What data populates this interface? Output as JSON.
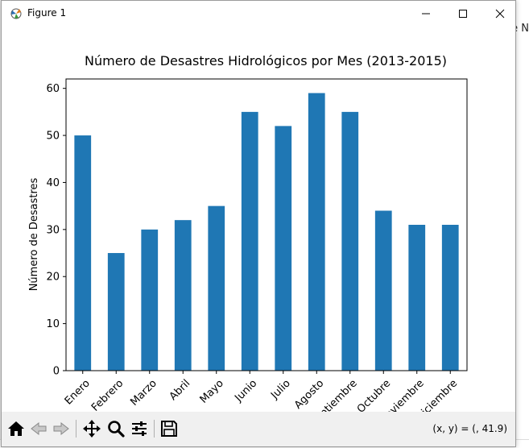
{
  "background": {
    "right_text": "e N"
  },
  "window": {
    "title": "Figure 1",
    "colors": {
      "bar": "#1f77b4",
      "toolbar_bg": "#f0f0f0"
    }
  },
  "toolbar": {
    "icons": [
      "home-icon",
      "back-arrow-icon",
      "forward-arrow-icon",
      "pan-move-icon",
      "zoom-magnifier-icon",
      "configure-subplots-icon",
      "save-floppy-icon"
    ],
    "coords_text": "(x, y) = (, 41.9)"
  },
  "chart_data": {
    "type": "bar",
    "title": "Número de Desastres Hidrológicos por Mes (2013-2015)",
    "xlabel": "",
    "ylabel": "Número de Desastres",
    "categories": [
      "Enero",
      "Febrero",
      "Marzo",
      "Abril",
      "Mayo",
      "Junio",
      "Julio",
      "Agosto",
      "Septiembre",
      "Octubre",
      "Noviembre",
      "Diciembre"
    ],
    "values": [
      50,
      25,
      30,
      32,
      35,
      55,
      52,
      59,
      55,
      34,
      31,
      31
    ],
    "ylim": [
      0,
      62
    ],
    "yticks": [
      0,
      10,
      20,
      30,
      40,
      50,
      60
    ],
    "grid": false,
    "legend": "none",
    "color": "#1f77b4"
  }
}
